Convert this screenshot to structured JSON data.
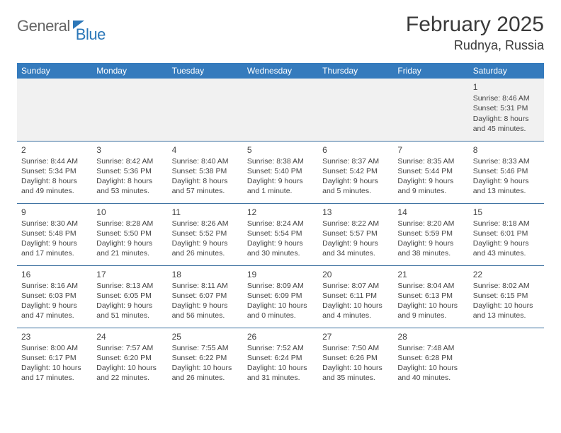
{
  "logo": {
    "part1": "General",
    "part2": "Blue"
  },
  "title": "February 2025",
  "location": "Rudnya, Russia",
  "colors": {
    "header_bg": "#357bbd",
    "header_text": "#ffffff",
    "rule": "#3a6f9f",
    "blank_bg": "#f1f1f1",
    "logo_accent": "#2b77b8",
    "logo_grey": "#666666",
    "body_text": "#444444"
  },
  "day_names": [
    "Sunday",
    "Monday",
    "Tuesday",
    "Wednesday",
    "Thursday",
    "Friday",
    "Saturday"
  ],
  "weeks": [
    [
      null,
      null,
      null,
      null,
      null,
      null,
      {
        "n": "1",
        "sr": "Sunrise: 8:46 AM",
        "ss": "Sunset: 5:31 PM",
        "dl": "Daylight: 8 hours and 45 minutes."
      }
    ],
    [
      {
        "n": "2",
        "sr": "Sunrise: 8:44 AM",
        "ss": "Sunset: 5:34 PM",
        "dl": "Daylight: 8 hours and 49 minutes."
      },
      {
        "n": "3",
        "sr": "Sunrise: 8:42 AM",
        "ss": "Sunset: 5:36 PM",
        "dl": "Daylight: 8 hours and 53 minutes."
      },
      {
        "n": "4",
        "sr": "Sunrise: 8:40 AM",
        "ss": "Sunset: 5:38 PM",
        "dl": "Daylight: 8 hours and 57 minutes."
      },
      {
        "n": "5",
        "sr": "Sunrise: 8:38 AM",
        "ss": "Sunset: 5:40 PM",
        "dl": "Daylight: 9 hours and 1 minute."
      },
      {
        "n": "6",
        "sr": "Sunrise: 8:37 AM",
        "ss": "Sunset: 5:42 PM",
        "dl": "Daylight: 9 hours and 5 minutes."
      },
      {
        "n": "7",
        "sr": "Sunrise: 8:35 AM",
        "ss": "Sunset: 5:44 PM",
        "dl": "Daylight: 9 hours and 9 minutes."
      },
      {
        "n": "8",
        "sr": "Sunrise: 8:33 AM",
        "ss": "Sunset: 5:46 PM",
        "dl": "Daylight: 9 hours and 13 minutes."
      }
    ],
    [
      {
        "n": "9",
        "sr": "Sunrise: 8:30 AM",
        "ss": "Sunset: 5:48 PM",
        "dl": "Daylight: 9 hours and 17 minutes."
      },
      {
        "n": "10",
        "sr": "Sunrise: 8:28 AM",
        "ss": "Sunset: 5:50 PM",
        "dl": "Daylight: 9 hours and 21 minutes."
      },
      {
        "n": "11",
        "sr": "Sunrise: 8:26 AM",
        "ss": "Sunset: 5:52 PM",
        "dl": "Daylight: 9 hours and 26 minutes."
      },
      {
        "n": "12",
        "sr": "Sunrise: 8:24 AM",
        "ss": "Sunset: 5:54 PM",
        "dl": "Daylight: 9 hours and 30 minutes."
      },
      {
        "n": "13",
        "sr": "Sunrise: 8:22 AM",
        "ss": "Sunset: 5:57 PM",
        "dl": "Daylight: 9 hours and 34 minutes."
      },
      {
        "n": "14",
        "sr": "Sunrise: 8:20 AM",
        "ss": "Sunset: 5:59 PM",
        "dl": "Daylight: 9 hours and 38 minutes."
      },
      {
        "n": "15",
        "sr": "Sunrise: 8:18 AM",
        "ss": "Sunset: 6:01 PM",
        "dl": "Daylight: 9 hours and 43 minutes."
      }
    ],
    [
      {
        "n": "16",
        "sr": "Sunrise: 8:16 AM",
        "ss": "Sunset: 6:03 PM",
        "dl": "Daylight: 9 hours and 47 minutes."
      },
      {
        "n": "17",
        "sr": "Sunrise: 8:13 AM",
        "ss": "Sunset: 6:05 PM",
        "dl": "Daylight: 9 hours and 51 minutes."
      },
      {
        "n": "18",
        "sr": "Sunrise: 8:11 AM",
        "ss": "Sunset: 6:07 PM",
        "dl": "Daylight: 9 hours and 56 minutes."
      },
      {
        "n": "19",
        "sr": "Sunrise: 8:09 AM",
        "ss": "Sunset: 6:09 PM",
        "dl": "Daylight: 10 hours and 0 minutes."
      },
      {
        "n": "20",
        "sr": "Sunrise: 8:07 AM",
        "ss": "Sunset: 6:11 PM",
        "dl": "Daylight: 10 hours and 4 minutes."
      },
      {
        "n": "21",
        "sr": "Sunrise: 8:04 AM",
        "ss": "Sunset: 6:13 PM",
        "dl": "Daylight: 10 hours and 9 minutes."
      },
      {
        "n": "22",
        "sr": "Sunrise: 8:02 AM",
        "ss": "Sunset: 6:15 PM",
        "dl": "Daylight: 10 hours and 13 minutes."
      }
    ],
    [
      {
        "n": "23",
        "sr": "Sunrise: 8:00 AM",
        "ss": "Sunset: 6:17 PM",
        "dl": "Daylight: 10 hours and 17 minutes."
      },
      {
        "n": "24",
        "sr": "Sunrise: 7:57 AM",
        "ss": "Sunset: 6:20 PM",
        "dl": "Daylight: 10 hours and 22 minutes."
      },
      {
        "n": "25",
        "sr": "Sunrise: 7:55 AM",
        "ss": "Sunset: 6:22 PM",
        "dl": "Daylight: 10 hours and 26 minutes."
      },
      {
        "n": "26",
        "sr": "Sunrise: 7:52 AM",
        "ss": "Sunset: 6:24 PM",
        "dl": "Daylight: 10 hours and 31 minutes."
      },
      {
        "n": "27",
        "sr": "Sunrise: 7:50 AM",
        "ss": "Sunset: 6:26 PM",
        "dl": "Daylight: 10 hours and 35 minutes."
      },
      {
        "n": "28",
        "sr": "Sunrise: 7:48 AM",
        "ss": "Sunset: 6:28 PM",
        "dl": "Daylight: 10 hours and 40 minutes."
      },
      null
    ]
  ]
}
